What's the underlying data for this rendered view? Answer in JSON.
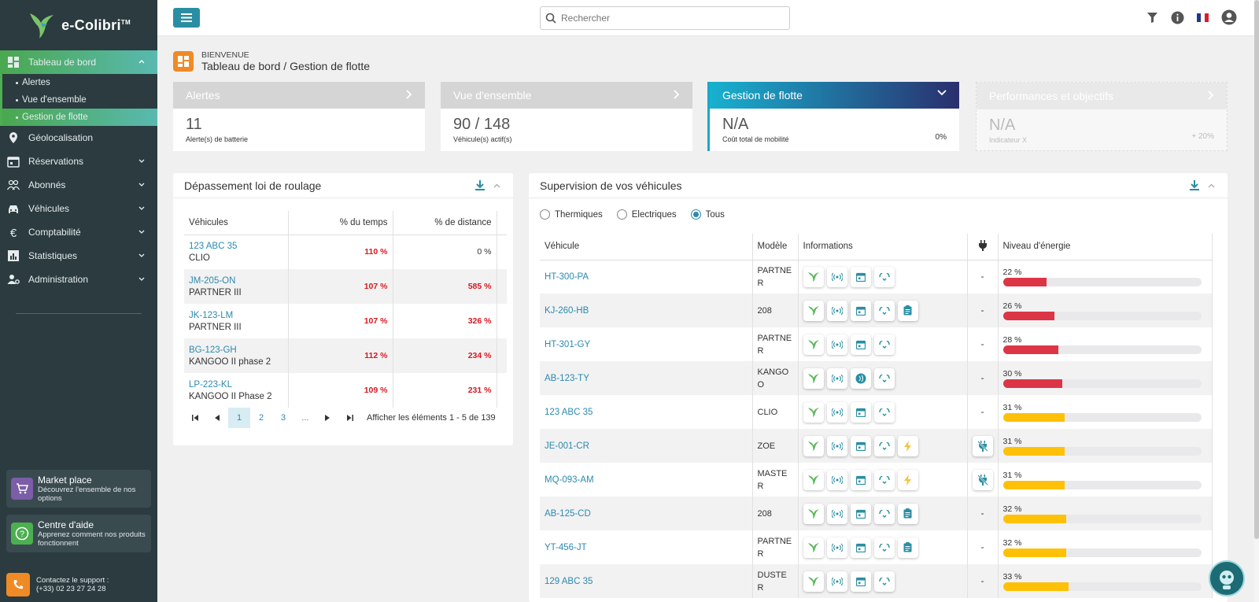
{
  "brand": {
    "name": "e-Colibri",
    "tm": "TM"
  },
  "sidebar": {
    "items": [
      {
        "label": "Tableau de bord",
        "icon": "dashboard-icon"
      },
      {
        "label": "Géolocalisation",
        "icon": "location-pin-icon"
      },
      {
        "label": "Réservations",
        "icon": "calendar-icon"
      },
      {
        "label": "Abonnés",
        "icon": "users-icon"
      },
      {
        "label": "Véhicules",
        "icon": "car-icon"
      },
      {
        "label": "Comptabilité",
        "icon": "euro-icon"
      },
      {
        "label": "Statistiques",
        "icon": "stats-icon"
      },
      {
        "label": "Administration",
        "icon": "admin-icon"
      }
    ],
    "subitems": [
      "Alertes",
      "Vue d'ensemble",
      "Gestion de flotte"
    ],
    "market": {
      "title": "Market place",
      "desc": "Découvrez l'ensemble de nos options"
    },
    "help": {
      "title": "Centre d'aide",
      "desc": "Apprenez comment nos produits fonctionnent"
    },
    "support": {
      "line1": "Contactez le support :",
      "line2": "(+33) 02 23 27 24 28"
    }
  },
  "topbar": {
    "search_placeholder": "Rechercher"
  },
  "breadcrumb": {
    "small": "BIENVENUE",
    "big": "Tableau de bord / Gestion de flotte"
  },
  "kpis": [
    {
      "title": "Alertes",
      "value": "11",
      "label": "Alerte(s) de batterie",
      "pct": ""
    },
    {
      "title": "Vue d'ensemble",
      "value": "90 / 148",
      "label": "Véhicule(s) actif(s)",
      "pct": ""
    },
    {
      "title": "Gestion de flotte",
      "value": "N/A",
      "label": "Coût total de mobilité",
      "pct": "0%"
    },
    {
      "title": "Performances et objectifs",
      "value": "N/A",
      "label": "Indicateur X",
      "pct": "+ 20%"
    }
  ],
  "left_panel": {
    "title": "Dépassement loi de roulage",
    "headers": [
      "Véhicules",
      "% du temps",
      "% de distance"
    ],
    "rows": [
      {
        "plate": "123 ABC 35",
        "model": "CLIO",
        "time": "110 %",
        "dist": "0 %"
      },
      {
        "plate": "JM-205-ON",
        "model": "PARTNER III",
        "time": "107 %",
        "dist": "585 %"
      },
      {
        "plate": "JK-123-LM",
        "model": "PARTNER III",
        "time": "107 %",
        "dist": "326 %"
      },
      {
        "plate": "BG-123-GH",
        "model": "KANGOO II phase 2",
        "time": "112 %",
        "dist": "234 %"
      },
      {
        "plate": "LP-223-KL",
        "model": "KANGOO II Phase 2",
        "time": "109 %",
        "dist": "231 %"
      }
    ],
    "pager": {
      "pages": [
        "1",
        "2",
        "3",
        "..."
      ],
      "info": "Afficher les éléments 1 - 5 de 139"
    }
  },
  "right_panel": {
    "title": "Supervision de vos véhicules",
    "filters": [
      "Thermiques",
      "Electriques",
      "Tous"
    ],
    "headers": [
      "Véhicule",
      "Modèle",
      "Informations",
      "Niveau d'énergie"
    ],
    "rows": [
      {
        "plate": "HT-300-PA",
        "model": "PARTNER",
        "energy": "22 %",
        "level": 22,
        "color": "#dc3545",
        "extras": [],
        "plug": "-"
      },
      {
        "plate": "KJ-260-HB",
        "model": "208",
        "energy": "26 %",
        "level": 26,
        "color": "#dc3545",
        "extras": [
          "clipboard"
        ],
        "plug": "-"
      },
      {
        "plate": "HT-301-GY",
        "model": "PARTNER",
        "energy": "28 %",
        "level": 28,
        "color": "#dc3545",
        "extras": [],
        "plug": "-"
      },
      {
        "plate": "AB-123-TY",
        "model": "KANGOO",
        "energy": "30 %",
        "level": 30,
        "color": "#dc3545",
        "extras": [],
        "plug": "-"
      },
      {
        "plate": "123 ABC 35",
        "model": "CLIO",
        "energy": "31 %",
        "level": 31,
        "color": "#ffc107",
        "extras": [],
        "plug": "-"
      },
      {
        "plate": "JE-001-CR",
        "model": "ZOE",
        "energy": "31 %",
        "level": 31,
        "color": "#ffc107",
        "extras": [
          "bolt"
        ],
        "plug": "unplugged"
      },
      {
        "plate": "MQ-093-AM",
        "model": "MASTER",
        "energy": "31 %",
        "level": 31,
        "color": "#ffc107",
        "extras": [
          "bolt"
        ],
        "plug": "unplugged"
      },
      {
        "plate": "AB-125-CD",
        "model": "208",
        "energy": "32 %",
        "level": 32,
        "color": "#ffc107",
        "extras": [
          "clipboard"
        ],
        "plug": "-"
      },
      {
        "plate": "YT-456-JT",
        "model": "PARTNER",
        "energy": "32 %",
        "level": 32,
        "color": "#ffc107",
        "extras": [
          "clipboard"
        ],
        "plug": "-"
      },
      {
        "plate": "129 ABC 35",
        "model": "DUSTER",
        "energy": "33 %",
        "level": 33,
        "color": "#ffc107",
        "extras": [],
        "plug": "-"
      }
    ]
  }
}
